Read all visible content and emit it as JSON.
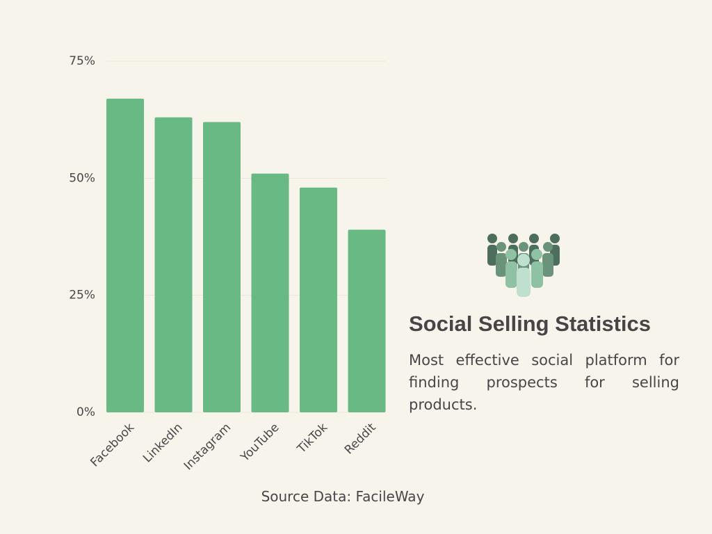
{
  "chart_data": {
    "type": "bar",
    "title": "Social Selling Statistics",
    "description": "Most effective social platform for finding prospects for selling products.",
    "source": "Source Data: FacileWay",
    "categories": [
      "Facebook",
      "LinkedIn",
      "Instagram",
      "YouTube",
      "TikTok",
      "Reddit"
    ],
    "values": [
      67,
      63,
      62,
      51,
      48,
      39
    ],
    "color": "#69b985",
    "ylim": [
      0,
      75
    ],
    "yticks": [
      {
        "value": 0,
        "label": "0%"
      },
      {
        "value": 25,
        "label": "25%"
      },
      {
        "value": 50,
        "label": "50%"
      },
      {
        "value": 75,
        "label": "75%"
      }
    ],
    "grid": true
  }
}
